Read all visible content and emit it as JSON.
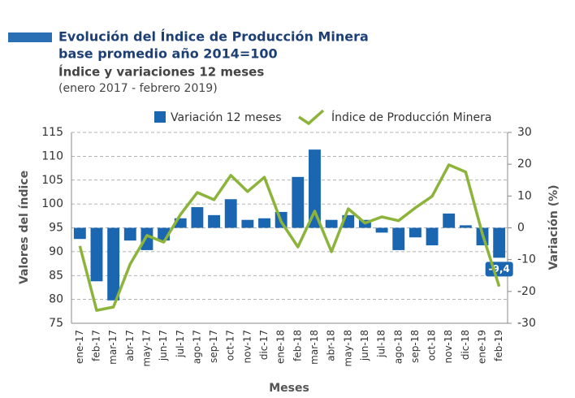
{
  "chart_data": {
    "type": "combo",
    "title": "Evolución del Índice de Producción Minera",
    "title_line2": "base promedio año 2014=100",
    "subtitle": "Índice y variaciones 12 meses",
    "subtitle_line2": "(enero 2017 - febrero 2019)",
    "y_label": "Valores del índice",
    "y2_label": "Variación (%)",
    "x_label": "Meses",
    "categories": [
      "ene-17",
      "feb-17",
      "mar-17",
      "abr-17",
      "may-17",
      "jun-17",
      "jul-17",
      "ago-17",
      "sep-17",
      "oct-17",
      "nov-17",
      "dic-17",
      "ene-18",
      "feb-18",
      "mar-18",
      "abr-18",
      "may-18",
      "jun-18",
      "jul-18",
      "ago-18",
      "sep-18",
      "oct-18",
      "nov-18",
      "dic-18",
      "ene-19",
      "feb-19"
    ],
    "series": [
      {
        "name": "Variación 12 meses",
        "type": "bar",
        "axis": "y2",
        "color": "#1a66b0",
        "values": [
          -3.5,
          -16.8,
          -22.8,
          -4,
          -7,
          -4,
          3,
          6.5,
          4,
          9,
          2.5,
          3,
          5,
          16,
          24.6,
          2.5,
          4,
          2.5,
          -1.5,
          -7,
          -3,
          -5.5,
          4.5,
          0.8,
          -5.5,
          -9.4
        ],
        "value_labels": [
          null,
          null,
          null,
          null,
          null,
          null,
          null,
          null,
          null,
          null,
          null,
          null,
          null,
          null,
          null,
          null,
          null,
          null,
          null,
          null,
          null,
          null,
          null,
          null,
          null,
          "-9,4"
        ]
      },
      {
        "name": "Índice de Producción Minera",
        "type": "line",
        "axis": "y",
        "color": "#8cb43a",
        "values": [
          91.2,
          77.7,
          78.4,
          87.4,
          93.4,
          92,
          97.8,
          102.4,
          100.9,
          106,
          102.6,
          105.6,
          96.3,
          91,
          98.5,
          90,
          99,
          96,
          97.3,
          96.5,
          99.2,
          101.6,
          108.2,
          106.7,
          93.7,
          82.7
        ]
      }
    ],
    "ylim": [
      75,
      115
    ],
    "yticks": [
      75,
      80,
      85,
      90,
      95,
      100,
      105,
      110,
      115
    ],
    "y2lim": [
      -30,
      30
    ],
    "y2ticks": [
      -30,
      -20,
      -10,
      0,
      10,
      20,
      30
    ],
    "grid": true
  }
}
